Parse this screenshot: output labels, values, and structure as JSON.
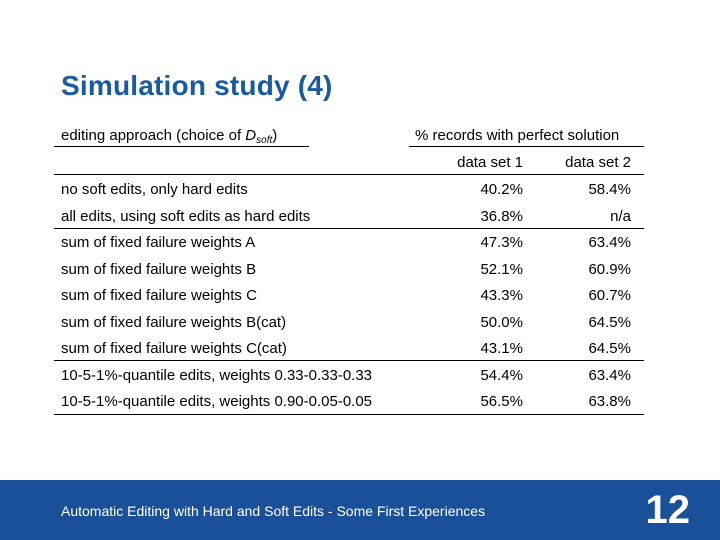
{
  "title": "Simulation study (4)",
  "table": {
    "header_left_prefix": "editing approach (choice of ",
    "header_left_var": "D",
    "header_left_sub": "soft",
    "header_left_suffix": ")",
    "header_right": "% records with perfect solution",
    "col1": "data set 1",
    "col2": "data set 2",
    "rows": [
      {
        "label": "no soft edits, only hard edits",
        "v1": "40.2%",
        "v2": "58.4%"
      },
      {
        "label": "all edits, using soft edits as hard edits",
        "v1": "36.8%",
        "v2": "n/a"
      },
      {
        "label": "sum of fixed failure weights A",
        "v1": "47.3%",
        "v2": "63.4%"
      },
      {
        "label": "sum of fixed failure weights B",
        "v1": "52.1%",
        "v2": "60.9%"
      },
      {
        "label": "sum of fixed failure weights C",
        "v1": "43.3%",
        "v2": "60.7%"
      },
      {
        "label": "sum of fixed failure weights B(cat)",
        "v1": "50.0%",
        "v2": "64.5%"
      },
      {
        "label": "sum of fixed failure weights C(cat)",
        "v1": "43.1%",
        "v2": "64.5%"
      },
      {
        "label": "10-5-1%-quantile edits, weights 0.33-0.33-0.33",
        "v1": "54.4%",
        "v2": "63.4%"
      },
      {
        "label": "10-5-1%-quantile edits, weights 0.90-0.05-0.05",
        "v1": "56.5%",
        "v2": "63.8%"
      }
    ]
  },
  "footer": {
    "text": "Automatic Editing with Hard and Soft Edits - Some First Experiences",
    "page_number": "12"
  }
}
